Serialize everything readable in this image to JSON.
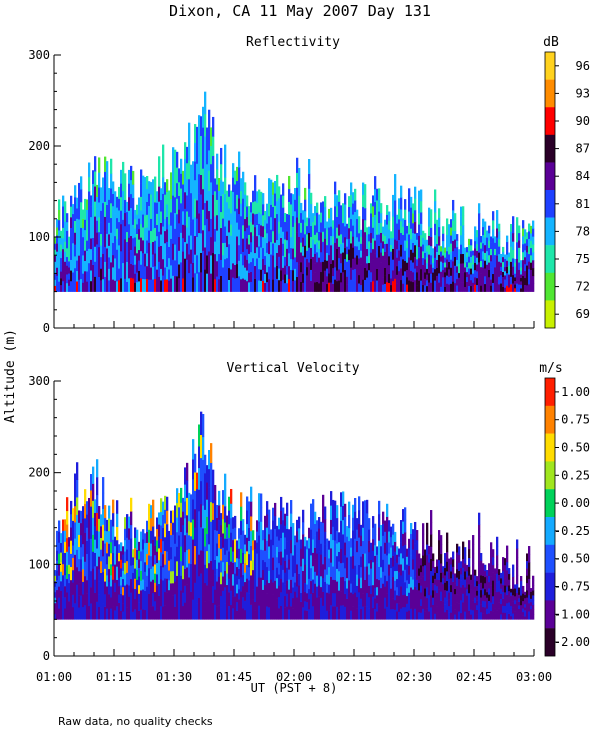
{
  "page": {
    "title": "Dixon, CA 11 May 2007  Day 131",
    "y_label": "Altitude (m)",
    "x_label": "UT  (PST + 8)",
    "note": "Raw data, no quality checks"
  },
  "chart_data": [
    {
      "type": "heatmap",
      "title": "Reflectivity",
      "ylabel": "Altitude (m)",
      "xlabel": "",
      "x_ticks": [
        "01:00",
        "01:15",
        "01:30",
        "01:45",
        "02:00",
        "02:15",
        "02:30",
        "02:45",
        "03:00"
      ],
      "y_ticks": [
        0,
        100,
        200,
        300
      ],
      "xlim": [
        "01:00",
        "03:00"
      ],
      "ylim": [
        0,
        300
      ],
      "colorbar": {
        "unit": "dB",
        "labels": [
          "96",
          "93",
          "90",
          "87",
          "84",
          "81",
          "78",
          "75",
          "72",
          "69"
        ],
        "colors": [
          "#ffd21e",
          "#ff8c00",
          "#ff0000",
          "#2a0028",
          "#5a0096",
          "#1e40ff",
          "#14b4ff",
          "#1ee6aa",
          "#50e632",
          "#c8f000"
        ]
      },
      "echo_base_m": 40,
      "echo_top_profile": [
        {
          "t": "01:00",
          "top": 140
        },
        {
          "t": "01:05",
          "top": 160
        },
        {
          "t": "01:10",
          "top": 200
        },
        {
          "t": "01:15",
          "top": 200
        },
        {
          "t": "01:20",
          "top": 180
        },
        {
          "t": "01:25",
          "top": 200
        },
        {
          "t": "01:30",
          "top": 200
        },
        {
          "t": "01:35",
          "top": 240
        },
        {
          "t": "01:37",
          "top": 280
        },
        {
          "t": "01:40",
          "top": 200
        },
        {
          "t": "01:45",
          "top": 200
        },
        {
          "t": "01:50",
          "top": 180
        },
        {
          "t": "02:00",
          "top": 180
        },
        {
          "t": "02:15",
          "top": 160
        },
        {
          "t": "02:30",
          "top": 160
        },
        {
          "t": "02:35",
          "top": 140
        },
        {
          "t": "02:45",
          "top": 140
        },
        {
          "t": "03:00",
          "top": 120
        }
      ]
    },
    {
      "type": "heatmap",
      "title": "Vertical Velocity",
      "ylabel": "Altitude (m)",
      "xlabel": "UT  (PST + 8)",
      "x_ticks": [
        "01:00",
        "01:15",
        "01:30",
        "01:45",
        "02:00",
        "02:15",
        "02:30",
        "02:45",
        "03:00"
      ],
      "y_ticks": [
        0,
        100,
        200,
        300
      ],
      "xlim": [
        "01:00",
        "03:00"
      ],
      "ylim": [
        0,
        300
      ],
      "colorbar": {
        "unit": "m/s",
        "labels": [
          "1.00",
          "0.75",
          "0.50",
          "0.25",
          "0.00",
          "-0.25",
          "-0.50",
          "-0.75",
          "-1.00",
          "-2.00"
        ],
        "colors": [
          "#ff1e00",
          "#ff8200",
          "#ffdc00",
          "#a0e61e",
          "#00d25a",
          "#14aaff",
          "#1e50ff",
          "#1e1edc",
          "#5a0096",
          "#2a0028"
        ]
      },
      "echo_base_m": 40,
      "echo_top_profile": [
        {
          "t": "01:00",
          "top": 140
        },
        {
          "t": "01:05",
          "top": 200
        },
        {
          "t": "01:10",
          "top": 220
        },
        {
          "t": "01:15",
          "top": 180
        },
        {
          "t": "01:20",
          "top": 160
        },
        {
          "t": "01:25",
          "top": 180
        },
        {
          "t": "01:30",
          "top": 180
        },
        {
          "t": "01:35",
          "top": 240
        },
        {
          "t": "01:37",
          "top": 280
        },
        {
          "t": "01:40",
          "top": 220
        },
        {
          "t": "01:45",
          "top": 180
        },
        {
          "t": "01:50",
          "top": 180
        },
        {
          "t": "02:00",
          "top": 180
        },
        {
          "t": "02:15",
          "top": 180
        },
        {
          "t": "02:30",
          "top": 160
        },
        {
          "t": "02:35",
          "top": 140
        },
        {
          "t": "02:45",
          "top": 140
        },
        {
          "t": "03:00",
          "top": 120
        }
      ]
    }
  ]
}
